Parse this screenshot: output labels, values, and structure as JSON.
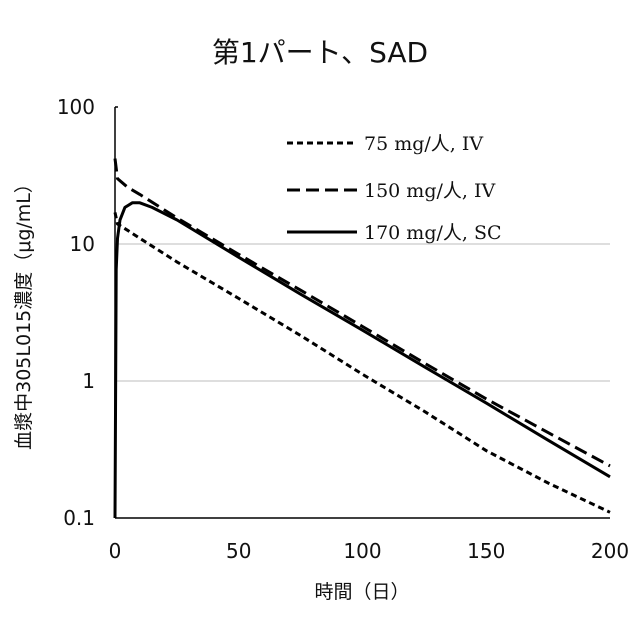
{
  "chart_data": {
    "type": "line",
    "title": "第1パート、SAD",
    "xlabel": "時間（日）",
    "ylabel": "血漿中305L015濃度（μg/mL）",
    "x_scale": "linear",
    "y_scale": "log",
    "xlim": [
      0,
      200
    ],
    "ylim": [
      0.1,
      100
    ],
    "x_ticks": [
      "0",
      "50",
      "100",
      "150",
      "200"
    ],
    "y_ticks": [
      "0.1",
      "1",
      "10",
      "100"
    ],
    "grid": "horizontal",
    "legend_position": "top-right",
    "series": [
      {
        "name": "75 mg/人, IV",
        "style": "short-dash",
        "x": [
          0,
          1,
          5,
          10,
          25,
          50,
          75,
          100,
          125,
          150,
          175,
          200
        ],
        "y": [
          17.0,
          14.0,
          12.6,
          11.0,
          7.4,
          4.0,
          2.15,
          1.12,
          0.6,
          0.31,
          0.18,
          0.11
        ]
      },
      {
        "name": "150 mg/人, IV",
        "style": "long-dash",
        "x": [
          0,
          1,
          5,
          10,
          25,
          50,
          75,
          100,
          125,
          150,
          175,
          200
        ],
        "y": [
          42.0,
          30.0,
          26.0,
          23.0,
          15.5,
          8.4,
          4.6,
          2.5,
          1.35,
          0.74,
          0.42,
          0.24
        ]
      },
      {
        "name": "170 mg/人, SC",
        "style": "solid",
        "x": [
          0,
          0.5,
          1,
          2,
          4,
          7,
          10,
          15,
          25,
          50,
          75,
          100,
          125,
          150,
          175,
          200
        ],
        "y": [
          0.1,
          6.5,
          11.0,
          15.0,
          18.5,
          20.0,
          20.0,
          18.5,
          15.0,
          8.0,
          4.3,
          2.35,
          1.27,
          0.69,
          0.37,
          0.2
        ]
      }
    ]
  }
}
